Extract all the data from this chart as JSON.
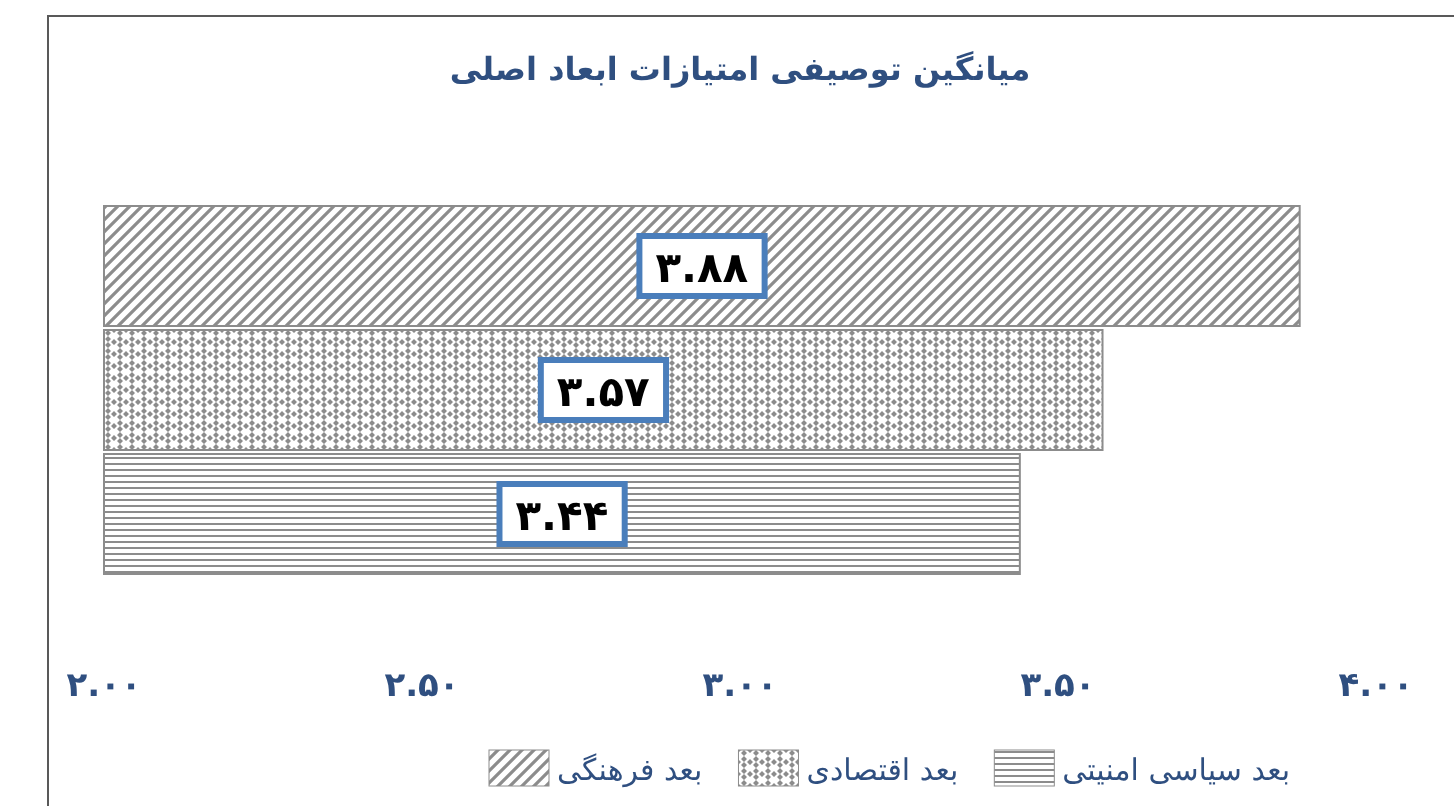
{
  "chart_data": {
    "type": "bar",
    "orientation": "horizontal",
    "title": "میانگین توصیفی امتیازات ابعاد اصلی",
    "categories": [
      null
    ],
    "series": [
      {
        "name": "بعد سیاسی امنیتی",
        "color": "#8c8c8c",
        "values": [
          3.44
        ],
        "value_labels": [
          "۳.۴۴"
        ]
      },
      {
        "name": "بعد اقتصادی",
        "color": "#8c8c8c",
        "values": [
          3.57
        ],
        "value_labels": [
          "۳.۵۷"
        ]
      },
      {
        "name": "بعد فرهنگی",
        "color": "#8c8c8c",
        "values": [
          3.88
        ],
        "value_labels": [
          "۳.۸۸"
        ]
      }
    ],
    "xlim": [
      2,
      4
    ],
    "xticks": [
      {
        "value": 2,
        "label": "۲.۰۰"
      },
      {
        "value": 2.5,
        "label": "۲.۵۰"
      },
      {
        "value": 3,
        "label": "۳.۰۰"
      },
      {
        "value": 3.5,
        "label": "۳.۵۰"
      },
      {
        "value": 4,
        "label": "۴.۰۰"
      }
    ],
    "grid": false,
    "legend": "bottom"
  }
}
